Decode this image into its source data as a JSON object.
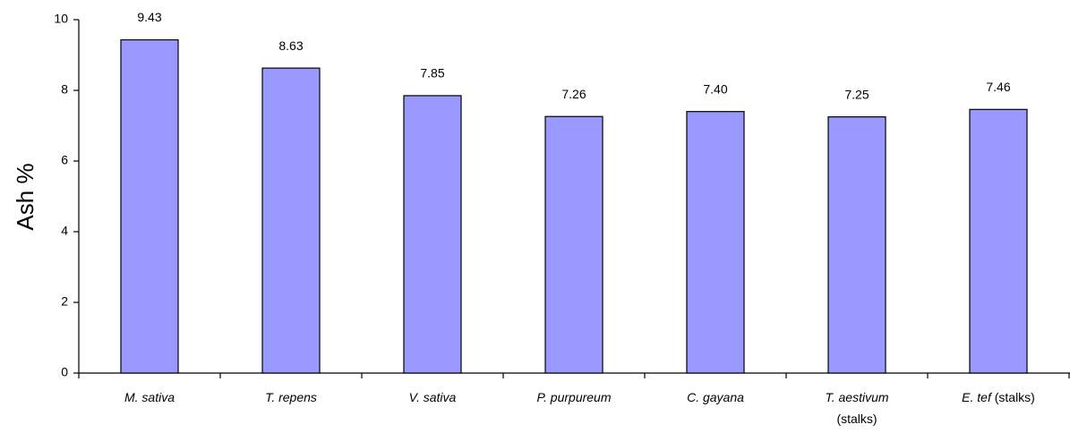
{
  "chart_data": {
    "type": "bar",
    "y_label": "Ash %",
    "categories": [
      "M. sativa",
      "T. repens",
      "V. sativa",
      "P. purpureum",
      "C. gayana",
      "T. aestivum (stalks)",
      "E. tef (stalks)"
    ],
    "values": [
      9.43,
      8.63,
      7.85,
      7.26,
      7.4,
      7.25,
      7.46
    ],
    "value_labels": [
      "9.43",
      "8.63",
      "7.85",
      "7.26",
      "7.40",
      "7.25",
      "7.46"
    ],
    "color": "#9999ff",
    "ylim": [
      0,
      10
    ],
    "yticks": [
      0,
      2,
      4,
      6,
      8,
      10
    ],
    "grid": false
  }
}
